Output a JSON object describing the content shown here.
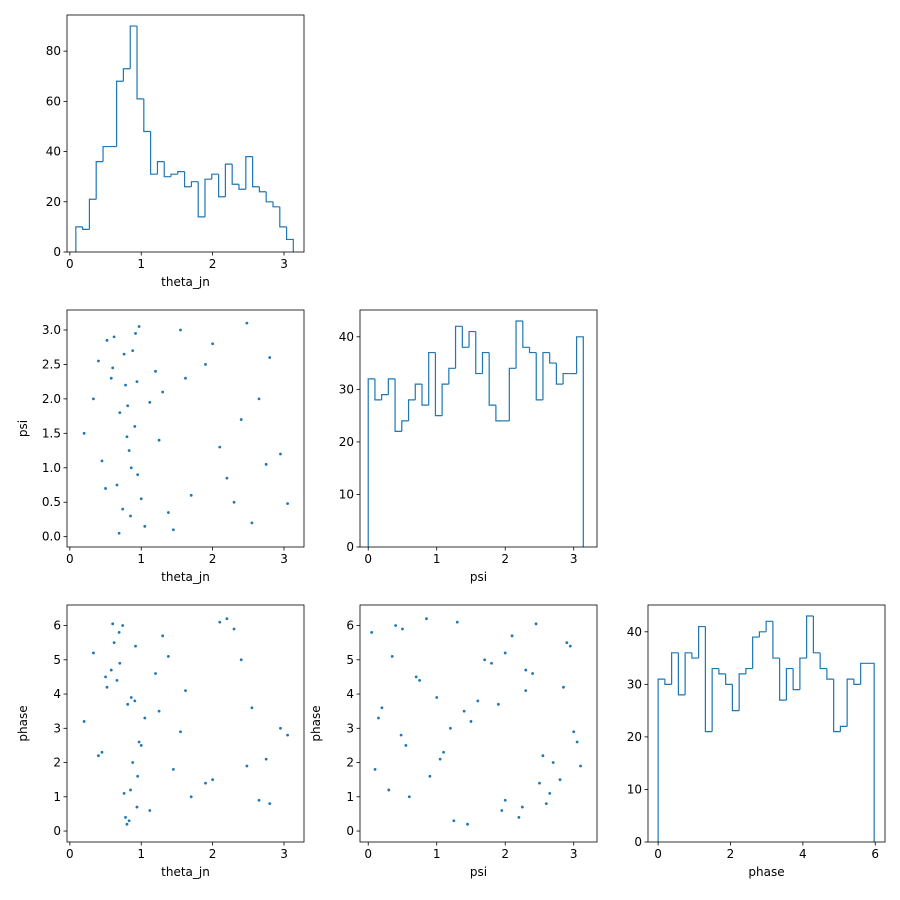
{
  "chart_data": [
    {
      "type": "histogram",
      "xlabel": "theta_jn",
      "color": "#1f77b4",
      "bins": [
        0.084,
        0.179,
        0.274,
        0.369,
        0.465,
        0.56,
        0.655,
        0.75,
        0.846,
        0.941,
        1.036,
        1.131,
        1.227,
        1.322,
        1.417,
        1.512,
        1.607,
        1.703,
        1.798,
        1.893,
        1.988,
        2.084,
        2.179,
        2.274,
        2.369,
        2.465,
        2.56,
        2.655,
        2.75,
        2.846,
        2.941,
        3.036,
        3.13
      ],
      "values": [
        10,
        9,
        21,
        36,
        42,
        42,
        68,
        73,
        90,
        61,
        48,
        31,
        36,
        30,
        31,
        32,
        26,
        28,
        14,
        29,
        31,
        22,
        35,
        27,
        25,
        38,
        26,
        24,
        20,
        18,
        10,
        5
      ],
      "xlim": [
        -0.04,
        3.28
      ],
      "xticks": [
        0,
        1,
        2,
        3
      ],
      "ylim": [
        0,
        94.4
      ],
      "yticks": [
        0,
        20,
        40,
        60,
        80
      ]
    },
    {
      "type": "scatter",
      "xlabel": "theta_jn",
      "ylabel": "psi",
      "color": "#1f77b4",
      "x": [
        0.62,
        0.85,
        0.91,
        1.2,
        0.45,
        0.78,
        2.3,
        1.55,
        0.95,
        0.7,
        2.8,
        1.05,
        0.33,
        0.88,
        2.1,
        1.7,
        0.52,
        0.8,
        2.55,
        1.3,
        0.97,
        0.66,
        1.9,
        2.95,
        0.74,
        1.12,
        0.4,
        2.4,
        0.86,
        1.45,
        0.58,
        2.65,
        0.92,
        1.0,
        0.2,
        2.2,
        0.76,
        1.62,
        0.83,
        3.05,
        0.69,
        1.25,
        2.0,
        0.5,
        0.94,
        2.75,
        1.38,
        0.81,
        0.6,
        2.48
      ],
      "y": [
        2.9,
        0.3,
        1.6,
        2.4,
        1.1,
        2.2,
        0.5,
        3.0,
        0.9,
        1.8,
        2.6,
        0.15,
        2.0,
        2.7,
        1.3,
        0.6,
        2.85,
        1.45,
        0.2,
        2.1,
        3.05,
        0.75,
        2.5,
        1.2,
        0.4,
        1.95,
        2.55,
        1.7,
        1.0,
        0.1,
        2.3,
        2.0,
        2.95,
        0.55,
        1.5,
        0.85,
        2.65,
        2.3,
        1.25,
        0.48,
        0.05,
        1.4,
        2.8,
        0.7,
        2.25,
        1.05,
        0.35,
        1.9,
        2.45,
        3.1
      ],
      "xlim": [
        -0.04,
        3.28
      ],
      "xticks": [
        0,
        1,
        2,
        3
      ],
      "ylim": [
        -0.15,
        3.29
      ],
      "yticks": [
        {
          "value": 0,
          "label": "0.0"
        },
        0.5,
        {
          "value": 1,
          "label": "1.0"
        },
        1.5,
        {
          "value": 2,
          "label": "2.0"
        },
        2.5,
        {
          "value": 3,
          "label": "3.0"
        }
      ]
    },
    {
      "type": "histogram",
      "xlabel": "psi",
      "color": "#1f77b4",
      "bins": [
        0.0,
        0.098,
        0.196,
        0.294,
        0.392,
        0.49,
        0.589,
        0.687,
        0.785,
        0.883,
        0.981,
        1.079,
        1.177,
        1.275,
        1.374,
        1.472,
        1.57,
        1.668,
        1.766,
        1.864,
        1.962,
        2.06,
        2.158,
        2.257,
        2.355,
        2.453,
        2.551,
        2.649,
        2.747,
        2.845,
        2.943,
        3.042,
        3.14
      ],
      "values": [
        32,
        28,
        29,
        32,
        22,
        24,
        28,
        31,
        27,
        37,
        25,
        31,
        34,
        42,
        38,
        41,
        33,
        37,
        27,
        24,
        24,
        34,
        43,
        38,
        37,
        28,
        37,
        35,
        31,
        33,
        33,
        40
      ],
      "xlim": [
        -0.12,
        3.34
      ],
      "xticks": [
        0,
        1,
        2,
        3
      ],
      "ylim": [
        0,
        45.1
      ],
      "yticks": [
        0,
        10,
        20,
        30,
        40
      ]
    },
    {
      "type": "scatter",
      "xlabel": "theta_jn",
      "ylabel": "phase",
      "color": "#1f77b4",
      "x": [
        0.62,
        0.85,
        0.91,
        1.2,
        0.45,
        0.78,
        2.3,
        1.55,
        0.95,
        0.7,
        2.8,
        1.05,
        0.33,
        0.88,
        2.1,
        1.7,
        0.52,
        0.8,
        2.55,
        1.3,
        0.97,
        0.66,
        1.9,
        2.95,
        0.74,
        1.12,
        0.4,
        2.4,
        0.86,
        1.45,
        0.58,
        2.65,
        0.92,
        1.0,
        0.2,
        2.2,
        0.76,
        1.62,
        0.83,
        3.05,
        0.69,
        1.25,
        2.0,
        0.5,
        0.94,
        2.75,
        1.38,
        0.81,
        0.6,
        2.48
      ],
      "y": [
        5.5,
        1.2,
        3.8,
        4.6,
        2.3,
        0.4,
        5.9,
        2.9,
        1.6,
        4.9,
        0.8,
        3.3,
        5.2,
        2.0,
        6.1,
        1.0,
        4.2,
        0.2,
        3.6,
        5.7,
        2.6,
        4.4,
        1.4,
        3.0,
        6.0,
        0.6,
        2.2,
        5.0,
        3.9,
        1.8,
        4.7,
        0.9,
        5.4,
        2.5,
        3.2,
        6.2,
        1.1,
        4.1,
        0.3,
        2.8,
        5.8,
        3.5,
        1.5,
        4.5,
        0.7,
        2.1,
        5.1,
        3.7,
        6.05,
        1.9
      ],
      "xlim": [
        -0.04,
        3.28
      ],
      "xticks": [
        0,
        1,
        2,
        3
      ],
      "ylim": [
        -0.32,
        6.6
      ],
      "yticks": [
        0,
        1,
        2,
        3,
        4,
        5,
        6
      ]
    },
    {
      "type": "scatter",
      "xlabel": "psi",
      "ylabel": "phase",
      "color": "#1f77b4",
      "x": [
        2.9,
        0.3,
        1.6,
        2.4,
        1.1,
        2.2,
        0.5,
        3.0,
        0.9,
        1.8,
        2.6,
        0.15,
        2.0,
        2.7,
        1.3,
        0.6,
        2.85,
        1.45,
        0.2,
        2.1,
        3.05,
        0.75,
        2.5,
        1.2,
        0.4,
        1.95,
        2.55,
        1.7,
        1.0,
        0.1,
        2.3,
        2.0,
        2.95,
        0.55,
        1.5,
        0.85,
        2.65,
        2.3,
        1.25,
        0.48,
        0.05,
        1.4,
        2.8,
        0.7,
        2.25,
        1.05,
        0.35,
        1.9,
        2.45,
        3.1
      ],
      "y": [
        5.5,
        1.2,
        3.8,
        4.6,
        2.3,
        0.4,
        5.9,
        2.9,
        1.6,
        4.9,
        0.8,
        3.3,
        5.2,
        2.0,
        6.1,
        1.0,
        4.2,
        0.2,
        3.6,
        5.7,
        2.6,
        4.4,
        1.4,
        3.0,
        6.0,
        0.6,
        2.2,
        5.0,
        3.9,
        1.8,
        4.7,
        0.9,
        5.4,
        2.5,
        3.2,
        6.2,
        1.1,
        4.1,
        0.3,
        2.8,
        5.8,
        3.5,
        1.5,
        4.5,
        0.7,
        2.1,
        5.1,
        3.7,
        6.05,
        1.9
      ],
      "xlim": [
        -0.12,
        3.34
      ],
      "xticks": [
        0,
        1,
        2,
        3
      ],
      "ylim": [
        -0.32,
        6.6
      ],
      "yticks": [
        0,
        1,
        2,
        3,
        4,
        5,
        6
      ]
    },
    {
      "type": "histogram",
      "xlabel": "phase",
      "color": "#1f77b4",
      "bins": [
        0.0,
        0.187,
        0.373,
        0.56,
        0.746,
        0.933,
        1.119,
        1.306,
        1.493,
        1.679,
        1.866,
        2.052,
        2.239,
        2.425,
        2.612,
        2.799,
        2.985,
        3.172,
        3.358,
        3.545,
        3.731,
        3.918,
        4.104,
        4.291,
        4.478,
        4.664,
        4.851,
        5.037,
        5.224,
        5.41,
        5.597,
        5.784,
        5.97
      ],
      "values": [
        31,
        30,
        36,
        28,
        36,
        35,
        41,
        21,
        33,
        32,
        30,
        25,
        32,
        33,
        39,
        40,
        42,
        35,
        27,
        33,
        29,
        35,
        43,
        36,
        33,
        31,
        21,
        22,
        31,
        30,
        34,
        34
      ],
      "xlim": [
        -0.28,
        6.27
      ],
      "xticks": [
        0,
        2,
        4,
        6
      ],
      "ylim": [
        0,
        45.1
      ],
      "yticks": [
        0,
        10,
        20,
        30,
        40
      ]
    }
  ]
}
